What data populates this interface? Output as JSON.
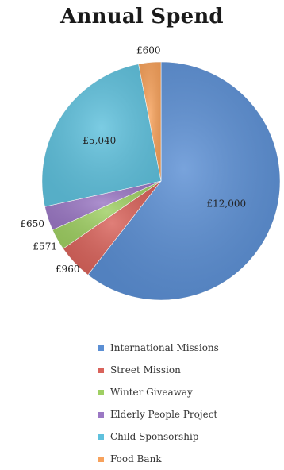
{
  "chart_data": {
    "type": "pie",
    "title": "Annual Spend",
    "categories": [
      "International Missions",
      "Street Mission",
      "Winter Giveaway",
      "Elderly People Project",
      "Child Sponsorship",
      "Food Bank"
    ],
    "values": [
      12000,
      960,
      571,
      650,
      5040,
      600
    ],
    "value_labels": [
      "£12,000",
      "£960",
      "£571",
      "£650",
      "£5,040",
      "£600"
    ],
    "colors": [
      "#5b8fd4",
      "#d9635b",
      "#9fcf63",
      "#9b78c4",
      "#5fc1dd",
      "#f7a25c"
    ],
    "start_angle_deg": 0,
    "direction": "clockwise",
    "legend_position": "bottom"
  }
}
